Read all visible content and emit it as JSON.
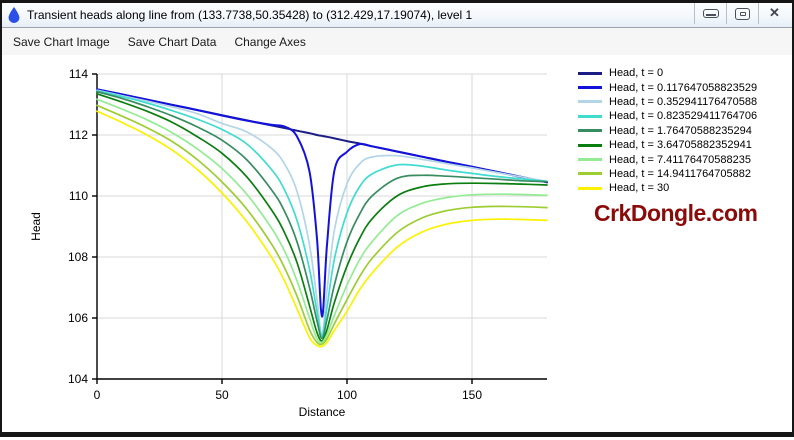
{
  "window": {
    "title": "Transient heads along line from (133.7738,50.35428) to (312.429,17.19074), level 1",
    "app_icon": "water-drop-icon",
    "app_icon_color": "#2b50e8",
    "controls": [
      {
        "name": "minimize"
      },
      {
        "name": "maximize"
      },
      {
        "name": "close",
        "glyph": "✕"
      }
    ]
  },
  "menu": {
    "items": [
      "Save Chart Image",
      "Save Chart Data",
      "Change Axes"
    ]
  },
  "watermark": {
    "text": "CrkDongle.com",
    "color": "#8B0A0A"
  },
  "chart_data": {
    "type": "line",
    "title": "",
    "xlabel": "Distance",
    "ylabel": "Head",
    "xlim": [
      0,
      180
    ],
    "ylim": [
      104,
      114
    ],
    "xticks": [
      0,
      50,
      100,
      150
    ],
    "yticks": [
      104,
      106,
      108,
      110,
      112,
      114
    ],
    "grid": true,
    "grid_color": "#d9d9d9",
    "axis_color": "#000000",
    "legend_position": "right",
    "x": [
      0,
      10,
      20,
      30,
      40,
      50,
      60,
      70,
      75,
      80,
      85,
      88,
      90,
      92,
      95,
      100,
      105,
      110,
      120,
      130,
      140,
      150,
      160,
      170,
      180
    ],
    "series": [
      {
        "name": "Head, t = 0",
        "color": "#1C1C85",
        "values": [
          113.5,
          113.33,
          113.16,
          112.99,
          112.82,
          112.65,
          112.48,
          112.31,
          112.23,
          112.14,
          112.06,
          112.0,
          111.97,
          111.94,
          111.89,
          111.8,
          111.72,
          111.63,
          111.46,
          111.29,
          111.12,
          110.96,
          110.79,
          110.62,
          110.45
        ]
      },
      {
        "name": "Head, t = 0.117647058823529",
        "color": "#1212DC",
        "values": [
          113.5,
          113.33,
          113.16,
          112.99,
          112.82,
          112.64,
          112.47,
          112.33,
          112.28,
          111.95,
          110.8,
          108.6,
          106.05,
          108.4,
          110.85,
          111.45,
          111.7,
          111.63,
          111.46,
          111.29,
          111.12,
          110.96,
          110.79,
          110.62,
          110.45
        ]
      },
      {
        "name": "Head, t = 0.352941176470588",
        "color": "#B3D5E6",
        "values": [
          113.47,
          113.29,
          113.11,
          112.92,
          112.7,
          112.38,
          112.1,
          111.55,
          111.05,
          110.15,
          108.4,
          106.6,
          105.45,
          106.9,
          108.9,
          110.4,
          111.05,
          111.28,
          111.32,
          111.2,
          111.06,
          110.92,
          110.77,
          110.62,
          110.48
        ]
      },
      {
        "name": "Head, t = 0.823529411764706",
        "color": "#40DCD0",
        "values": [
          113.45,
          113.26,
          113.05,
          112.8,
          112.52,
          112.18,
          111.7,
          110.85,
          110.2,
          109.2,
          107.6,
          106.2,
          105.4,
          106.35,
          107.95,
          109.45,
          110.3,
          110.72,
          111.02,
          110.98,
          110.85,
          110.74,
          110.64,
          110.56,
          110.48
        ]
      },
      {
        "name": "Head, t = 1.76470588235294",
        "color": "#378D61",
        "values": [
          113.42,
          113.2,
          112.93,
          112.63,
          112.27,
          111.83,
          111.18,
          110.18,
          109.5,
          108.5,
          107.0,
          105.9,
          105.33,
          105.95,
          107.1,
          108.5,
          109.4,
          110.0,
          110.58,
          110.68,
          110.65,
          110.6,
          110.55,
          110.5,
          110.47
        ]
      },
      {
        "name": "Head, t = 3.64705882352941",
        "color": "#0B7E10",
        "values": [
          113.35,
          113.08,
          112.78,
          112.42,
          111.95,
          111.4,
          110.62,
          109.52,
          108.8,
          107.82,
          106.4,
          105.52,
          105.25,
          105.62,
          106.52,
          107.7,
          108.6,
          109.25,
          110.0,
          110.3,
          110.4,
          110.42,
          110.41,
          110.39,
          110.36
        ]
      },
      {
        "name": "Head, t = 7.41176470588235",
        "color": "#93EC93",
        "values": [
          113.17,
          112.85,
          112.5,
          112.08,
          111.55,
          110.9,
          110.05,
          108.92,
          108.2,
          107.22,
          106.0,
          105.32,
          105.2,
          105.46,
          106.1,
          107.08,
          107.9,
          108.5,
          109.35,
          109.76,
          109.95,
          110.04,
          110.06,
          110.05,
          110.02
        ]
      },
      {
        "name": "Head, t = 14.9411764705882",
        "color": "#9CCD32",
        "values": [
          112.97,
          112.62,
          112.24,
          111.79,
          111.2,
          110.46,
          109.56,
          108.4,
          107.65,
          106.72,
          105.62,
          105.2,
          105.14,
          105.32,
          105.82,
          106.6,
          107.35,
          107.95,
          108.8,
          109.28,
          109.52,
          109.63,
          109.66,
          109.65,
          109.62
        ]
      },
      {
        "name": "Head, t = 30",
        "color": "#FBF100",
        "values": [
          112.78,
          112.41,
          112.0,
          111.51,
          110.88,
          110.1,
          109.15,
          107.97,
          107.22,
          106.3,
          105.36,
          105.1,
          105.07,
          105.2,
          105.6,
          106.22,
          106.92,
          107.47,
          108.32,
          108.82,
          109.08,
          109.2,
          109.24,
          109.23,
          109.2
        ]
      }
    ]
  }
}
